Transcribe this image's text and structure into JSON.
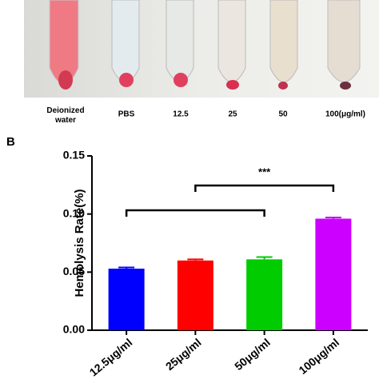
{
  "panel_label": "B",
  "photo": {
    "labels": [
      "Deionized water",
      "PBS",
      "12.5",
      "25",
      "50",
      "100(μg/ml)"
    ]
  },
  "chart_data": {
    "type": "bar",
    "y_label": "Hemolysis Rate(%)",
    "categories": [
      "12.5μg/ml",
      "25μg/ml",
      "50μg/ml",
      "100μg/ml"
    ],
    "values": [
      0.053,
      0.06,
      0.061,
      0.096
    ],
    "errors": [
      0.001,
      0.001,
      0.002,
      0.001
    ],
    "colors": [
      "#0000ff",
      "#ff0000",
      "#00cc00",
      "#cc00ff"
    ],
    "ylim": [
      0,
      0.15
    ],
    "yticks": [
      {
        "value": 0,
        "label": "0.00"
      },
      0.05,
      {
        "value": 0.1,
        "label": "0.10"
      },
      0.15
    ],
    "annotation": "***"
  }
}
